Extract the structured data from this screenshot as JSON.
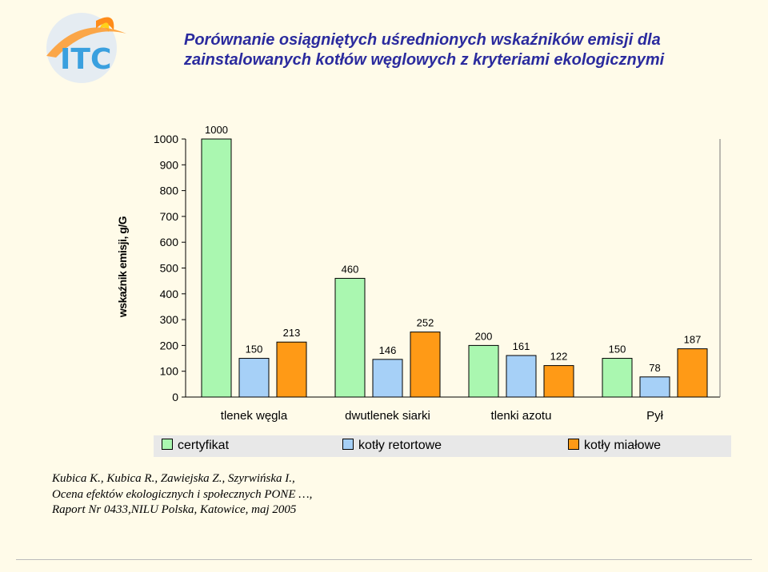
{
  "logo_text": "ITC",
  "title_lines": [
    "Porównanie osiągniętych uśrednionych wskaźników emisji dla",
    "zainstalowanych kotłów węglowych z kryteriami ekologicznymi"
  ],
  "colors": {
    "title": "#2b2b9e",
    "background": "#fffbe9",
    "series": [
      "#aaf7b0",
      "#a6d0f7",
      "#ff9a16"
    ]
  },
  "chart_data": {
    "type": "bar",
    "title": "",
    "xlabel": "",
    "ylabel": "wskaźnik emisji, g/G",
    "ylim": [
      0,
      1000
    ],
    "yticks": [
      "0",
      "100",
      "200",
      "300",
      "400",
      "500",
      "600",
      "700",
      "800",
      "900",
      "1000"
    ],
    "categories": [
      "tlenek węgla",
      "dwutlenek siarki",
      "tlenki azotu",
      "Pył"
    ],
    "series": [
      {
        "name": "certyfikat",
        "values": [
          1000,
          460,
          200,
          150
        ]
      },
      {
        "name": "kotły retortowe",
        "values": [
          150,
          146,
          161,
          78
        ]
      },
      {
        "name": "kotły miałowe",
        "values": [
          213,
          252,
          122,
          187
        ]
      }
    ],
    "legend": "bottom",
    "grid": false
  },
  "citation_lines": [
    "Kubica K., Kubica R., Zawiejska Z., Szyrwińska I.,",
    "Ocena efektów ekologicznych i społecznych PONE …,",
    "Raport Nr 0433,NILU Polska, Katowice, maj 2005"
  ]
}
